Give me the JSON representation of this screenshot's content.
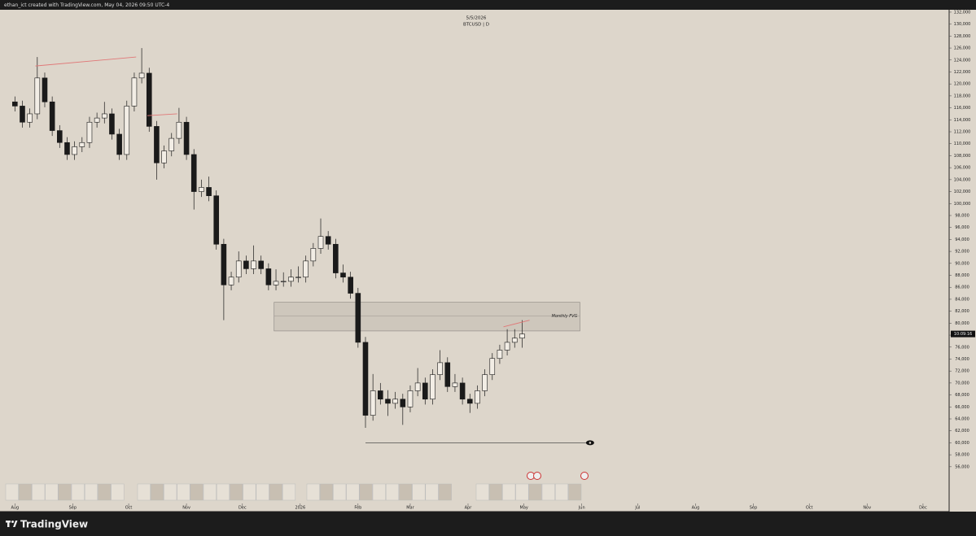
{
  "header": "ethan_ict created with TradingView.com, May 04, 2026 09:50 UTC-4",
  "footer": "TradingView",
  "chart_data": {
    "type": "candlestick",
    "date": "5/5/2026",
    "title": "BTCUSD | D",
    "x": [
      0,
      4,
      8,
      12,
      16,
      20,
      24,
      28,
      32,
      36,
      40,
      44,
      48,
      52,
      56,
      60,
      64,
      68,
      72,
      76,
      80,
      84,
      88,
      92,
      96,
      100,
      104,
      108,
      112,
      116,
      120,
      124,
      128,
      132,
      136,
      140,
      144,
      148,
      152,
      156,
      160,
      164,
      168,
      172,
      176,
      180,
      184,
      188,
      192,
      196,
      200,
      204,
      208,
      212,
      216,
      220,
      224,
      228,
      232,
      236,
      240,
      244,
      248,
      252,
      256,
      260,
      264,
      268,
      272
    ],
    "open": [
      117000,
      116300,
      113600,
      115000,
      121000,
      117000,
      112200,
      110200,
      108200,
      109500,
      110200,
      113600,
      114300,
      115000,
      111600,
      108200,
      116300,
      121000,
      121800,
      112900,
      106800,
      108800,
      110900,
      113600,
      108200,
      102000,
      102700,
      101300,
      93200,
      86400,
      87700,
      90400,
      89100,
      90400,
      89100,
      86400,
      87000,
      87000,
      87700,
      87700,
      90400,
      92500,
      94500,
      93200,
      88400,
      87700,
      85000,
      76800,
      64600,
      68700,
      67300,
      66600,
      67300,
      66000,
      68700,
      70000,
      67300,
      71400,
      73400,
      69400,
      70000,
      67300,
      66600,
      68700,
      71400,
      74100,
      75500,
      76800,
      77500
    ],
    "high": [
      117900,
      117200,
      115900,
      124500,
      121900,
      117900,
      113100,
      111100,
      110400,
      111100,
      114500,
      115200,
      117000,
      115900,
      112500,
      117200,
      121900,
      126000,
      122700,
      113800,
      109700,
      111800,
      116000,
      114500,
      109100,
      104000,
      104500,
      102200,
      94100,
      88600,
      92000,
      91300,
      93000,
      91300,
      90000,
      89000,
      88500,
      89000,
      89500,
      91300,
      93400,
      97500,
      95400,
      94100,
      89800,
      88600,
      85900,
      77700,
      71500,
      70000,
      68800,
      68500,
      68200,
      69600,
      72500,
      70900,
      72300,
      75500,
      74300,
      71500,
      70900,
      68200,
      69600,
      72300,
      75000,
      76400,
      79000,
      79000,
      80500
    ],
    "low": [
      115400,
      112700,
      112700,
      114100,
      116100,
      111300,
      109300,
      107300,
      107300,
      108600,
      109300,
      112700,
      113400,
      110700,
      107300,
      107300,
      115400,
      120100,
      112000,
      104000,
      105900,
      107900,
      110000,
      107300,
      99000,
      101100,
      100400,
      92300,
      80500,
      85500,
      86800,
      88200,
      88200,
      88200,
      85500,
      85500,
      86100,
      86100,
      86800,
      86800,
      89500,
      91600,
      92300,
      87500,
      86800,
      84100,
      75900,
      62500,
      63700,
      66400,
      64500,
      65700,
      63000,
      65100,
      67800,
      66400,
      66400,
      70500,
      68500,
      68500,
      66400,
      65000,
      65700,
      67800,
      70500,
      73200,
      74600,
      75900,
      75900
    ],
    "close": [
      116300,
      113600,
      115000,
      121000,
      117000,
      112200,
      110200,
      108200,
      109500,
      110200,
      113600,
      114300,
      115000,
      111600,
      108200,
      116300,
      121000,
      121800,
      112900,
      106800,
      108800,
      110900,
      113600,
      108200,
      102000,
      102700,
      101300,
      93200,
      86400,
      87700,
      90400,
      89100,
      90400,
      89100,
      86400,
      87000,
      87000,
      87700,
      87700,
      90400,
      92500,
      94500,
      93200,
      88400,
      87700,
      85000,
      76800,
      64600,
      68700,
      67300,
      66600,
      67300,
      66000,
      68700,
      70000,
      67300,
      71400,
      73400,
      69400,
      70000,
      67300,
      66600,
      68700,
      71400,
      74100,
      75500,
      76800,
      77500,
      78200
    ],
    "up_color": "#f2ede5",
    "down_color": "#1a1a1a",
    "countdown": "10:09:16",
    "zone": {
      "label": "Monthly FVG",
      "x": [
        139,
        303
      ],
      "low": 78700,
      "high": 83500,
      "mid": 81200
    },
    "trend_lines": {
      "color": "#e07878",
      "lines": [
        {
          "x": [
            11,
            65
          ],
          "y": [
            123000,
            124500
          ]
        },
        {
          "x": [
            71,
            87
          ],
          "y": [
            114700,
            115000
          ]
        },
        {
          "x": [
            262,
            276
          ],
          "y": [
            79400,
            80500
          ]
        }
      ]
    },
    "level_line": {
      "x": [
        188,
        308
      ],
      "y": 60000
    },
    "xlim": [
      -8,
      501
    ],
    "xticks": [
      {
        "value": 0,
        "label": "Aug"
      },
      {
        "value": 31,
        "label": "Sep"
      },
      {
        "value": 61,
        "label": "Oct"
      },
      {
        "value": 92,
        "label": "Nov"
      },
      {
        "value": 122,
        "label": "Dec"
      },
      {
        "value": 153,
        "label": "2026"
      },
      {
        "value": 184,
        "label": "Feb"
      },
      {
        "value": 212,
        "label": "Mar"
      },
      {
        "value": 243,
        "label": "Apr"
      },
      {
        "value": 273,
        "label": "May"
      },
      {
        "value": 304,
        "label": "Jun"
      },
      {
        "value": 334,
        "label": "Jul"
      },
      {
        "value": 365,
        "label": "Aug"
      },
      {
        "value": 396,
        "label": "Sep"
      },
      {
        "value": 426,
        "label": "Oct"
      },
      {
        "value": 457,
        "label": "Nov"
      },
      {
        "value": 487,
        "label": "Dec"
      }
    ],
    "ylim": [
      48500,
      132400
    ],
    "yticks": [
      {
        "value": 56000,
        "label": "56,000"
      },
      {
        "value": 58000,
        "label": "58,000"
      },
      {
        "value": 60000,
        "label": "60,000"
      },
      {
        "value": 62000,
        "label": "62,000"
      },
      {
        "value": 64000,
        "label": "64,000"
      },
      {
        "value": 66000,
        "label": "66,000"
      },
      {
        "value": 68000,
        "label": "68,000"
      },
      {
        "value": 70000,
        "label": "70,000"
      },
      {
        "value": 72000,
        "label": "72,000"
      },
      {
        "value": 74000,
        "label": "74,000"
      },
      {
        "value": 76000,
        "label": "76,000"
      },
      {
        "value": 78000,
        "label": "78,000"
      },
      {
        "value": 80000,
        "label": "80,000"
      },
      {
        "value": 82000,
        "label": "82,000"
      },
      {
        "value": 84000,
        "label": "84,000"
      },
      {
        "value": 86000,
        "label": "86,000"
      },
      {
        "value": 88000,
        "label": "88,000"
      },
      {
        "value": 90000,
        "label": "90,000"
      },
      {
        "value": 92000,
        "label": "92,000"
      },
      {
        "value": 94000,
        "label": "94,000"
      },
      {
        "value": 96000,
        "label": "96,000"
      },
      {
        "value": 98000,
        "label": "98,000"
      },
      {
        "value": 100000,
        "label": "100,000"
      },
      {
        "value": 102000,
        "label": "102,000"
      },
      {
        "value": 104000,
        "label": "104,000"
      },
      {
        "value": 106000,
        "label": "106,000"
      },
      {
        "value": 108000,
        "label": "108,000"
      },
      {
        "value": 110000,
        "label": "110,000"
      },
      {
        "value": 112000,
        "label": "112,000"
      },
      {
        "value": 114000,
        "label": "114,000"
      },
      {
        "value": 116000,
        "label": "116,000"
      },
      {
        "value": 118000,
        "label": "118,000"
      },
      {
        "value": 120000,
        "label": "120,000"
      },
      {
        "value": 122000,
        "label": "122,000"
      },
      {
        "value": 124000,
        "label": "124,000"
      },
      {
        "value": 126000,
        "label": "126,000"
      },
      {
        "value": 128000,
        "label": "128,000"
      },
      {
        "value": 130000,
        "label": "130,000"
      },
      {
        "value": 132000,
        "label": "132,000"
      }
    ]
  }
}
